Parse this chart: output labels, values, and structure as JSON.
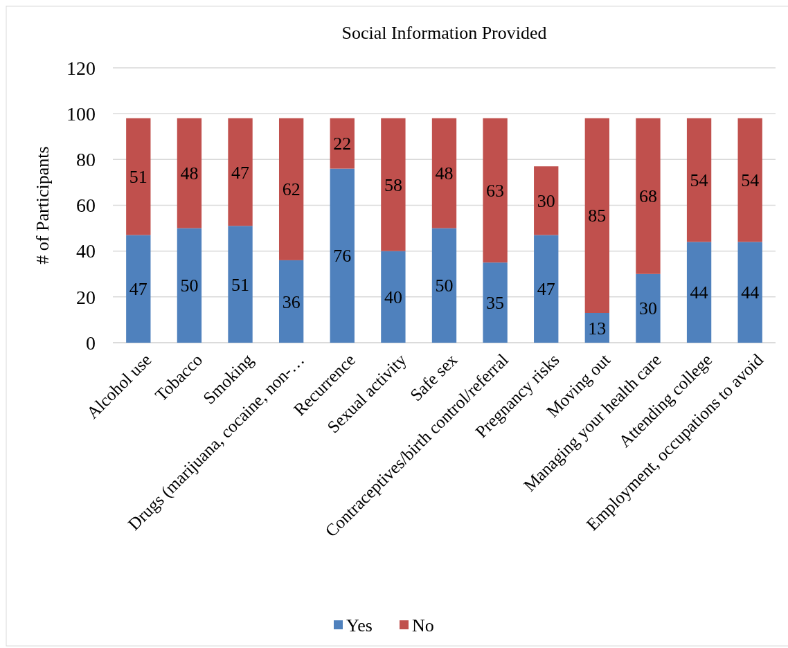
{
  "chart_data": {
    "type": "bar",
    "title": "Social Information Provided",
    "ylabel": "# of Participants",
    "categories": [
      "Alcohol use",
      "Tobacco",
      "Smoking",
      "Drugs (marijuana, cocaine, non-…",
      "Recurrence",
      "Sexual activity",
      "Safe sex",
      "Contraceptives/birth control/referral",
      "Pregnancy risks",
      "Moving out",
      "Managing your health care",
      "Attending college",
      "Employment, occupations to avoid"
    ],
    "series": [
      {
        "name": "Yes",
        "color": "#4f81bd",
        "values": [
          47,
          50,
          51,
          36,
          76,
          40,
          50,
          35,
          47,
          13,
          30,
          44,
          44
        ]
      },
      {
        "name": "No",
        "color": "#c0504d",
        "values": [
          51,
          48,
          47,
          62,
          22,
          58,
          48,
          63,
          30,
          85,
          68,
          54,
          54
        ]
      }
    ],
    "stacked": true,
    "data_labels": true,
    "ylim": [
      0,
      120
    ],
    "yticks": [
      0,
      20,
      40,
      60,
      80,
      100,
      120
    ],
    "grid": "y",
    "legend": "bottom"
  }
}
